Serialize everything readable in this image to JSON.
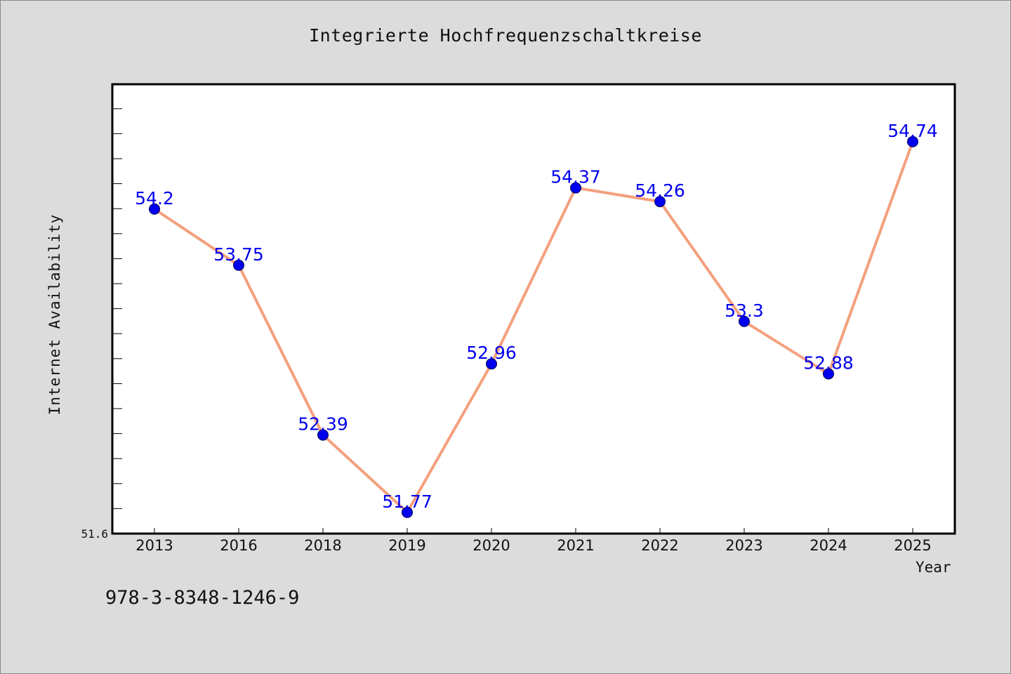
{
  "chart_data": {
    "type": "line",
    "title": "Integrierte Hochfrequenzschaltkreise",
    "xlabel": "Year",
    "ylabel": "Internet Availability",
    "categories": [
      "2013",
      "2016",
      "2018",
      "2019",
      "2020",
      "2021",
      "2022",
      "2023",
      "2024",
      "2025"
    ],
    "series": [
      {
        "values": [
          54.2,
          53.75,
          52.39,
          51.77,
          52.96,
          54.37,
          54.26,
          53.3,
          52.88,
          54.74
        ],
        "data_labels": [
          "54.2",
          "53.75",
          "52.39",
          "51.77",
          "52.96",
          "54.37",
          "54.26",
          "53.3",
          "52.88",
          "54.74"
        ]
      }
    ],
    "y_tick_label": "51.6",
    "ylim": [
      51.6,
      55.2
    ],
    "grid": false,
    "line_color": "#f4a07e",
    "marker_color": "#0000ee",
    "label_color": "#0000ee"
  },
  "footer": {
    "isbn": "978-3-8348-1246-9"
  }
}
